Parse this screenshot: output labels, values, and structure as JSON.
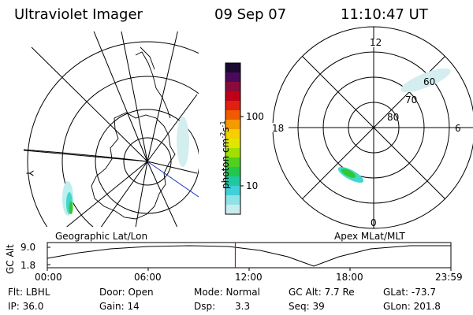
{
  "header": {
    "instrument": "Ultraviolet Imager",
    "date": "09 Sep 07",
    "time": "11:10:47 UT"
  },
  "left_map": {
    "caption": "Geographic Lat/Lon",
    "edge_label": "Y"
  },
  "right_map": {
    "caption": "Apex MLat/MLT",
    "mlt_labels": {
      "top": "12",
      "left": "18",
      "right": "6",
      "bottom": "0"
    },
    "lat_labels": [
      "60",
      "70",
      "80"
    ]
  },
  "colorbar": {
    "label": "photon cm",
    "label_exp1": "-2",
    "label_mid": "s",
    "label_exp2": "-1",
    "ticks": [
      "100",
      "10"
    ],
    "colors_top_to_bottom": [
      "#1a0a30",
      "#4a0a5a",
      "#8a0a3a",
      "#c00018",
      "#e02010",
      "#f05a00",
      "#f59a00",
      "#f5cf00",
      "#e0e600",
      "#a0e000",
      "#50d020",
      "#20c850",
      "#20c8a0",
      "#40d0d8",
      "#90e0e8",
      "#c8ecee"
    ]
  },
  "altitude_plot": {
    "ylabel": "GC Alt",
    "y_ticks": [
      "9.0",
      "1.8"
    ],
    "x_ticks": [
      "00:00",
      "06:00",
      "12:00",
      "18:00",
      "23:59"
    ],
    "ymin": 1.8,
    "ymax": 9.0,
    "current_time_hours": 11.18,
    "marker_color": "#e00000"
  },
  "status": {
    "flt": "Flt: LBHL",
    "ip": "IP: 36.0",
    "door": "Door: Open",
    "gain": "Gain: 14",
    "mode": "Mode: Normal",
    "dsp_label": "Dsp:",
    "dsp_value": "3.3",
    "gcalt": "GC Alt: 7.7 Re",
    "seq": "Seq: 39",
    "glat": "GLat: -73.7",
    "glon": "GLon: 201.8"
  }
}
